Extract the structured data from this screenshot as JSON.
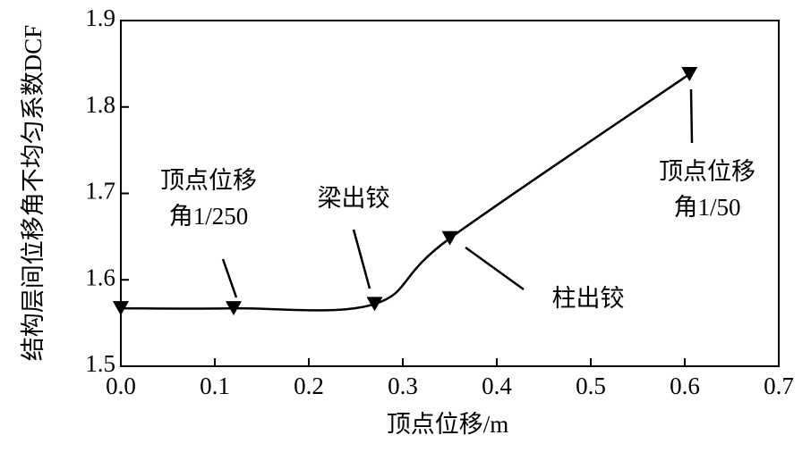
{
  "chart_data": {
    "type": "line",
    "x_label": "顶点位移/m",
    "y_label": "结构层间位移角不均匀系数DCF",
    "series": [
      {
        "name": "DCF",
        "color": "#000000",
        "x": [
          0,
          0.12,
          0.27,
          0.35,
          0.605
        ],
        "values": [
          1.567,
          1.567,
          1.572,
          1.648,
          1.838
        ]
      }
    ],
    "xlim": [
      0,
      0.7
    ],
    "xticks": [
      {
        "value": 0,
        "label": "0.0"
      },
      0.1,
      0.2,
      0.3,
      0.4,
      0.5,
      0.6,
      0.7
    ],
    "ylim": [
      1.5,
      1.9
    ],
    "yticks": [
      1.5,
      1.6,
      1.7,
      1.8,
      1.9
    ],
    "grid": false,
    "annotations": [
      {
        "lines": [
          "顶点位移",
          "角1/250"
        ]
      },
      {
        "lines": [
          "梁出铰"
        ]
      },
      {
        "lines": [
          "柱出铰"
        ]
      },
      {
        "lines": [
          "顶点位移",
          "角1/50"
        ]
      }
    ]
  }
}
